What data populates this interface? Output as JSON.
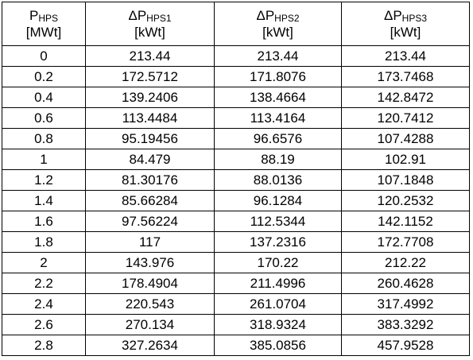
{
  "table": {
    "headers": [
      {
        "symbol": "P",
        "sub": "HPS",
        "unit": "[MWt]"
      },
      {
        "symbol": "ΔP",
        "sub": "HPS1",
        "unit": "[kWt]"
      },
      {
        "symbol": "ΔP",
        "sub": "HPS2",
        "unit": "[kWt]"
      },
      {
        "symbol": "ΔP",
        "sub": "HPS3",
        "unit": "[kWt]"
      }
    ],
    "rows": [
      [
        "0",
        "213.44",
        "213.44",
        "213.44"
      ],
      [
        "0.2",
        "172.5712",
        "171.8076",
        "173.7468"
      ],
      [
        "0.4",
        "139.2406",
        "138.4664",
        "142.8472"
      ],
      [
        "0.6",
        "113.4484",
        "113.4164",
        "120.7412"
      ],
      [
        "0.8",
        "95.19456",
        "96.6576",
        "107.4288"
      ],
      [
        "1",
        "84.479",
        "88.19",
        "102.91"
      ],
      [
        "1.2",
        "81.30176",
        "88.0136",
        "107.1848"
      ],
      [
        "1.4",
        "85.66284",
        "96.1284",
        "120.2532"
      ],
      [
        "1.6",
        "97.56224",
        "112.5344",
        "142.1152"
      ],
      [
        "1.8",
        "117",
        "137.2316",
        "172.7708"
      ],
      [
        "2",
        "143.976",
        "170.22",
        "212.22"
      ],
      [
        "2.2",
        "178.4904",
        "211.4996",
        "260.4628"
      ],
      [
        "2.4",
        "220.543",
        "261.0704",
        "317.4992"
      ],
      [
        "2.6",
        "270.134",
        "318.9324",
        "383.3292"
      ],
      [
        "2.8",
        "327.2634",
        "385.0856",
        "457.9528"
      ]
    ]
  }
}
